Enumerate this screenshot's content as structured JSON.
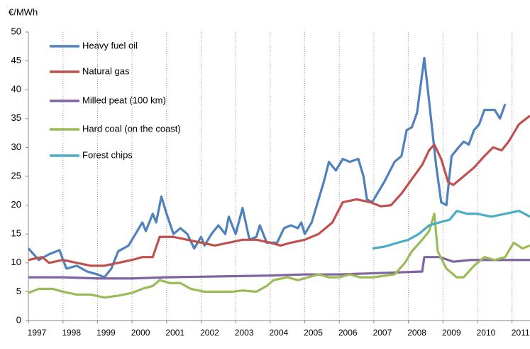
{
  "chart_data": {
    "type": "line",
    "y_label": "€/MWh",
    "legend": "upper left",
    "grid": true,
    "xlim": [
      1997,
      2011.52
    ],
    "xticks": [
      1997,
      1998,
      1999,
      2000,
      2001,
      2002,
      2003,
      2004,
      2005,
      2006,
      2007,
      2008,
      2009,
      2010,
      2011
    ],
    "ylim": [
      0,
      50
    ],
    "yticks": [
      0,
      5,
      10,
      15,
      20,
      25,
      30,
      35,
      40,
      45,
      50
    ],
    "series": [
      {
        "name": "Heavy fuel oil",
        "color": "#4f81bd",
        "x": [
          1997,
          1997.3,
          1997.6,
          1997.9,
          1998.1,
          1998.4,
          1998.7,
          1999.0,
          1999.2,
          1999.4,
          1999.6,
          1999.9,
          2000.1,
          2000.3,
          2000.4,
          2000.6,
          2000.7,
          2000.85,
          2001.0,
          2001.2,
          2001.4,
          2001.6,
          2001.8,
          2002.0,
          2002.1,
          2002.3,
          2002.5,
          2002.7,
          2002.8,
          2003.0,
          2003.2,
          2003.4,
          2003.6,
          2003.7,
          2003.9,
          2004.2,
          2004.4,
          2004.6,
          2004.8,
          2004.9,
          2005.0,
          2005.2,
          2005.4,
          2005.55,
          2005.7,
          2005.9,
          2006.1,
          2006.3,
          2006.55,
          2006.7,
          2006.8,
          2006.95,
          2007.3,
          2007.6,
          2007.8,
          2007.95,
          2008.1,
          2008.25,
          2008.46,
          2008.6,
          2008.8,
          2008.95,
          2009.1,
          2009.25,
          2009.45,
          2009.6,
          2009.75,
          2009.9,
          2010.05,
          2010.2,
          2010.5,
          2010.65,
          2010.8
        ],
        "values": [
          12.5,
          10.5,
          11.5,
          12.2,
          9,
          9.5,
          8.5,
          8,
          7.5,
          9,
          12,
          13,
          15,
          17,
          15.5,
          18.5,
          17,
          21.5,
          18.5,
          15,
          16,
          15,
          12.5,
          14.5,
          13,
          15,
          16.5,
          15,
          18,
          15,
          19.5,
          14,
          14.5,
          16.5,
          13.5,
          13.5,
          16,
          16.5,
          16,
          17,
          15,
          17,
          21,
          24,
          27.5,
          26,
          28,
          27.5,
          28,
          25,
          21,
          20.5,
          24,
          27.5,
          28.5,
          33,
          33.5,
          36,
          45.5,
          38,
          27,
          20.5,
          20,
          28.5,
          30,
          31,
          30.5,
          33,
          34,
          36.5,
          36.5,
          35,
          37.5
        ]
      },
      {
        "name": "Natural gas",
        "color": "#c0504d",
        "x": [
          1997,
          1997.4,
          1997.6,
          1998.0,
          1998.4,
          1998.8,
          1999.2,
          1999.6,
          2000.0,
          2000.3,
          2000.6,
          2000.8,
          2001.2,
          2001.6,
          2002.0,
          2002.4,
          2002.8,
          2003.2,
          2003.6,
          2004.0,
          2004.3,
          2004.6,
          2005.0,
          2005.4,
          2005.8,
          2006.1,
          2006.5,
          2006.9,
          2007.2,
          2007.5,
          2007.8,
          2008.1,
          2008.4,
          2008.6,
          2008.75,
          2008.95,
          2009.15,
          2009.3,
          2009.6,
          2009.9,
          2010.2,
          2010.45,
          2010.7,
          2010.9,
          2011.2,
          2011.52
        ],
        "values": [
          10.5,
          11,
          10,
          10.5,
          10,
          9.5,
          9.5,
          10,
          10.5,
          11,
          11,
          14.5,
          14.5,
          14,
          13.5,
          13,
          13.5,
          14,
          14,
          13.5,
          13,
          13.5,
          14,
          15,
          17,
          20.5,
          21,
          20.5,
          19.8,
          20,
          22,
          24.5,
          27,
          29.5,
          30.5,
          28,
          24,
          23.5,
          25,
          26.5,
          28.5,
          30,
          29.5,
          31,
          34,
          35.5
        ]
      },
      {
        "name": "Milled peat (100 km)",
        "color": "#8064a2",
        "x": [
          1997,
          1998,
          1999,
          2000,
          2001,
          2002,
          2003,
          2004,
          2005,
          2006,
          2007,
          2008.4,
          2008.46,
          2008.9,
          2009.3,
          2009.8,
          2010.5,
          2011.52
        ],
        "values": [
          7.5,
          7.5,
          7.3,
          7.3,
          7.5,
          7.6,
          7.7,
          7.8,
          8,
          8,
          8.2,
          8.5,
          11,
          11,
          10.2,
          10.5,
          10.5,
          10.5
        ]
      },
      {
        "name": "Hard coal (on the coast)",
        "color": "#9bbb59",
        "x": [
          1997,
          1997.3,
          1997.7,
          1998.0,
          1998.4,
          1998.8,
          1999.2,
          1999.6,
          2000.0,
          2000.3,
          2000.6,
          2000.8,
          2001.1,
          2001.4,
          2001.7,
          2002.1,
          2002.5,
          2002.9,
          2003.2,
          2003.6,
          2003.9,
          2004.1,
          2004.5,
          2004.8,
          2005.1,
          2005.4,
          2005.7,
          2006.0,
          2006.3,
          2006.6,
          2007.0,
          2007.6,
          2007.9,
          2008.1,
          2008.4,
          2008.6,
          2008.75,
          2008.85,
          2009.1,
          2009.4,
          2009.6,
          2009.9,
          2010.2,
          2010.5,
          2010.8,
          2011.05,
          2011.3,
          2011.52
        ],
        "values": [
          4.8,
          5.5,
          5.5,
          5,
          4.5,
          4.5,
          4,
          4.3,
          4.8,
          5.5,
          6,
          7,
          6.5,
          6.5,
          5.5,
          5,
          5,
          5,
          5.2,
          5,
          6,
          7,
          7.5,
          7,
          7.5,
          8,
          7.5,
          7.5,
          8,
          7.5,
          7.5,
          8,
          10,
          12,
          14,
          15.5,
          18.5,
          12,
          9,
          7.5,
          7.5,
          9.5,
          11,
          10.5,
          11,
          13.5,
          12.5,
          13
        ]
      },
      {
        "name": "Forest chips",
        "color": "#4bacc6",
        "x": [
          2006.96,
          2007.3,
          2007.7,
          2008.0,
          2008.3,
          2008.6,
          2008.9,
          2009.2,
          2009.4,
          2009.7,
          2010.0,
          2010.4,
          2010.8,
          2011.2,
          2011.52
        ],
        "values": [
          12.5,
          12.8,
          13.5,
          14,
          15,
          16.5,
          17,
          17.5,
          19,
          18.5,
          18.5,
          18,
          18.5,
          19,
          18
        ]
      }
    ]
  }
}
